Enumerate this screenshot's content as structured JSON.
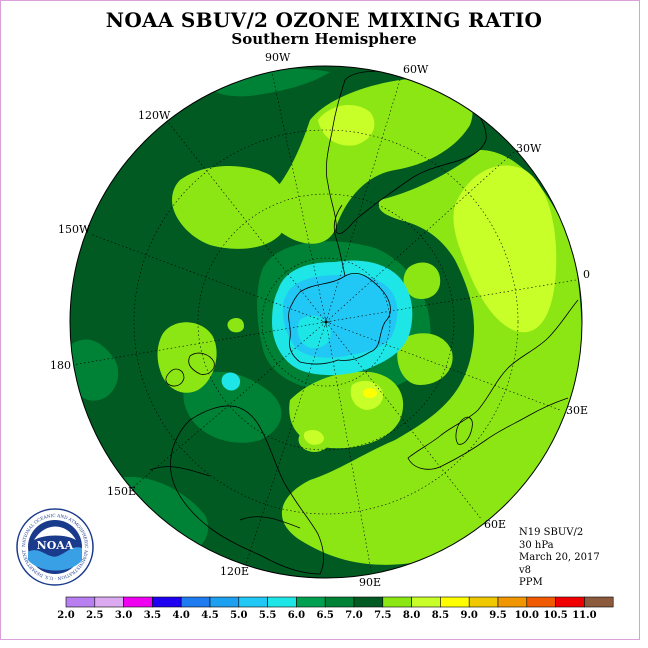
{
  "title": "NOAA SBUV/2 OZONE MIXING RATIO",
  "subtitle": "Southern Hemisphere",
  "meridian_labels": {
    "lon_90W": "90W",
    "lon_60W": "60W",
    "lon_30W": "30W",
    "lon_120W": "120W",
    "lon_150W": "150W",
    "lon_0": "0",
    "lon_180": "180",
    "lon_30E": "30E",
    "lon_150E": "150E",
    "lon_60E": "60E",
    "lon_120E": "120E",
    "lon_90E": "90E"
  },
  "info": {
    "instrument": "N19 SBUV/2",
    "level": "30 hPa",
    "date": "March 20, 2017",
    "version": "v8",
    "units": "PPM"
  },
  "logo": {
    "text": "NOAA",
    "ring_text": "NATIONAL OCEANIC AND ATMOSPHERIC ADMINISTRATION · U.S. DEPARTMENT OF COMMERCE"
  },
  "colorbar": {
    "ticks": [
      "2.0",
      "2.5",
      "3.0",
      "3.5",
      "4.0",
      "4.5",
      "5.0",
      "5.5",
      "6.0",
      "6.5",
      "7.0",
      "7.5",
      "8.0",
      "8.5",
      "9.0",
      "9.5",
      "10.0",
      "10.5",
      "11.0"
    ],
    "colors": [
      "#b87ff0",
      "#dcaaf0",
      "#f000f0",
      "#1f00f0",
      "#1e7cf0",
      "#1ea0f0",
      "#22c8f5",
      "#1ee6e6",
      "#00a050",
      "#008236",
      "#005a22",
      "#8ce614",
      "#c8ff28",
      "#ffff00",
      "#f0c800",
      "#f09600",
      "#f05a00",
      "#f00000",
      "#8c5a3c"
    ]
  },
  "colors": {
    "background_field": "#005a22",
    "mid_green": "#008236",
    "light_green": "#8ce614",
    "yellow_green": "#c8ff28",
    "cyan": "#1ee6e6",
    "sky_blue": "#22c8f5",
    "teal": "#00a050",
    "yellow": "#ffff00"
  }
}
